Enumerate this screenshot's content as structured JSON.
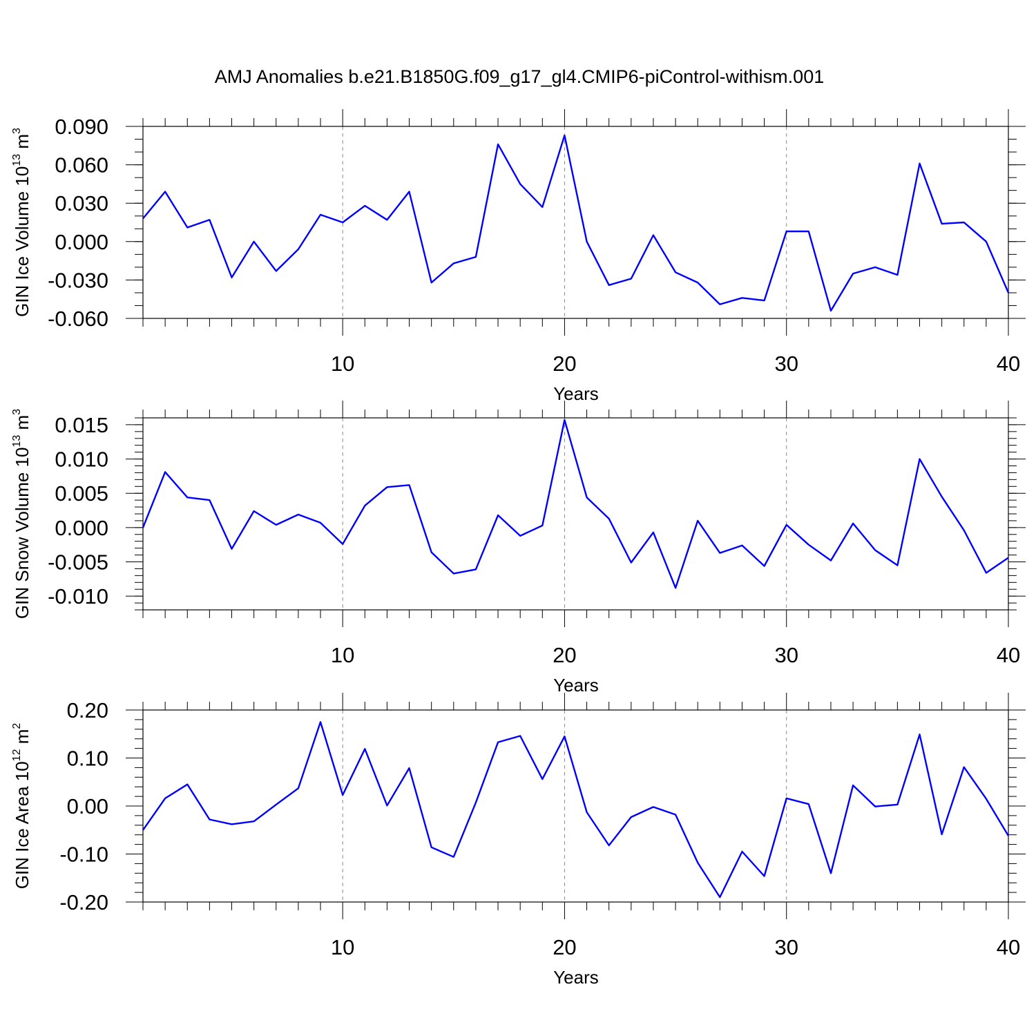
{
  "title": "AMJ Anomalies b.e21.B1850G.f09_g17_gl4.CMIP6-piControl-withism.001",
  "colors": {
    "line": "#0000ff",
    "grid": "#888888",
    "axis": "#000000"
  },
  "chart_data": [
    {
      "type": "line",
      "ylabel_main": "GIN Ice Volume 10",
      "ylabel_sup": "13",
      "ylabel_unit": "m",
      "ylabel_unit_sup": "3",
      "xlabel": "Years",
      "xlim": [
        1,
        40
      ],
      "ylim": [
        -0.06,
        0.09
      ],
      "x_ticks": [
        10,
        20,
        30,
        40
      ],
      "x_tick_labels": [
        "10",
        "20",
        "30",
        "40"
      ],
      "y_ticks": [
        -0.06,
        -0.03,
        0.0,
        0.03,
        0.06,
        0.09
      ],
      "y_tick_labels": [
        "-0.060",
        "-0.030",
        "0.000",
        "0.030",
        "0.060",
        "0.090"
      ],
      "y_minor_step": 0.01,
      "x": [
        1,
        2,
        3,
        4,
        5,
        6,
        7,
        8,
        9,
        10,
        11,
        12,
        13,
        14,
        15,
        16,
        17,
        18,
        19,
        20,
        21,
        22,
        23,
        24,
        25,
        26,
        27,
        28,
        29,
        30,
        31,
        32,
        33,
        34,
        35,
        36,
        37,
        38,
        39,
        40
      ],
      "values": [
        0.018,
        0.039,
        0.011,
        0.017,
        -0.028,
        0.0,
        -0.023,
        -0.006,
        0.021,
        0.015,
        0.028,
        0.017,
        0.039,
        -0.032,
        -0.017,
        -0.012,
        0.076,
        0.045,
        0.027,
        0.083,
        0.0,
        -0.034,
        -0.029,
        0.005,
        -0.024,
        -0.032,
        -0.049,
        -0.044,
        -0.046,
        0.008,
        0.008,
        -0.054,
        -0.025,
        -0.02,
        -0.026,
        0.061,
        0.014,
        0.015,
        0.0,
        -0.04
      ]
    },
    {
      "type": "line",
      "ylabel_main": "GIN Snow Volume 10",
      "ylabel_sup": "13",
      "ylabel_unit": "m",
      "ylabel_unit_sup": "3",
      "xlabel": "Years",
      "xlim": [
        1,
        40
      ],
      "ylim": [
        -0.012,
        0.016
      ],
      "x_ticks": [
        10,
        20,
        30,
        40
      ],
      "x_tick_labels": [
        "10",
        "20",
        "30",
        "40"
      ],
      "y_ticks": [
        -0.01,
        -0.005,
        0.0,
        0.005,
        0.01,
        0.015
      ],
      "y_tick_labels": [
        "-0.010",
        "-0.005",
        "0.000",
        "0.005",
        "0.010",
        "0.015"
      ],
      "y_minor_step": 0.001,
      "x": [
        1,
        2,
        3,
        4,
        5,
        6,
        7,
        8,
        9,
        10,
        11,
        12,
        13,
        14,
        15,
        16,
        17,
        18,
        19,
        20,
        21,
        22,
        23,
        24,
        25,
        26,
        27,
        28,
        29,
        30,
        31,
        32,
        33,
        34,
        35,
        36,
        37,
        38,
        39,
        40
      ],
      "values": [
        0.0,
        0.0081,
        0.0044,
        0.004,
        -0.0031,
        0.0024,
        0.0004,
        0.0019,
        0.0007,
        -0.0024,
        0.0032,
        0.0059,
        0.0062,
        -0.0036,
        -0.0067,
        -0.0061,
        0.0018,
        -0.0012,
        0.0003,
        0.0157,
        0.0044,
        0.0013,
        -0.0051,
        -0.0007,
        -0.0088,
        0.001,
        -0.0037,
        -0.0026,
        -0.0056,
        0.0004,
        -0.0025,
        -0.0048,
        0.0006,
        -0.0033,
        -0.0055,
        0.01,
        0.0045,
        -0.0004,
        -0.0066,
        -0.0044
      ]
    },
    {
      "type": "line",
      "ylabel_main": "GIN Ice Area 10",
      "ylabel_sup": "12",
      "ylabel_unit": "m",
      "ylabel_unit_sup": "2",
      "xlabel": "Years",
      "xlim": [
        1,
        40
      ],
      "ylim": [
        -0.2,
        0.2
      ],
      "x_ticks": [
        10,
        20,
        30,
        40
      ],
      "x_tick_labels": [
        "10",
        "20",
        "30",
        "40"
      ],
      "y_ticks": [
        -0.2,
        -0.1,
        0.0,
        0.1,
        0.2
      ],
      "y_tick_labels": [
        "-0.20",
        "-0.10",
        "0.00",
        "0.10",
        "0.20"
      ],
      "y_minor_step": 0.02,
      "x": [
        1,
        2,
        3,
        4,
        5,
        6,
        7,
        8,
        9,
        10,
        11,
        12,
        13,
        14,
        15,
        16,
        17,
        18,
        19,
        20,
        21,
        22,
        23,
        24,
        25,
        26,
        27,
        28,
        29,
        30,
        31,
        32,
        33,
        34,
        35,
        36,
        37,
        38,
        39,
        40
      ],
      "values": [
        -0.05,
        0.016,
        0.045,
        -0.028,
        -0.038,
        -0.032,
        0.003,
        0.037,
        0.175,
        0.023,
        0.119,
        0.001,
        0.079,
        -0.086,
        -0.106,
        0.007,
        0.133,
        0.146,
        0.056,
        0.145,
        -0.013,
        -0.082,
        -0.023,
        -0.002,
        -0.018,
        -0.118,
        -0.19,
        -0.095,
        -0.146,
        0.016,
        0.004,
        -0.14,
        0.043,
        -0.001,
        0.003,
        0.149,
        -0.059,
        0.081,
        0.015,
        -0.062
      ]
    }
  ]
}
